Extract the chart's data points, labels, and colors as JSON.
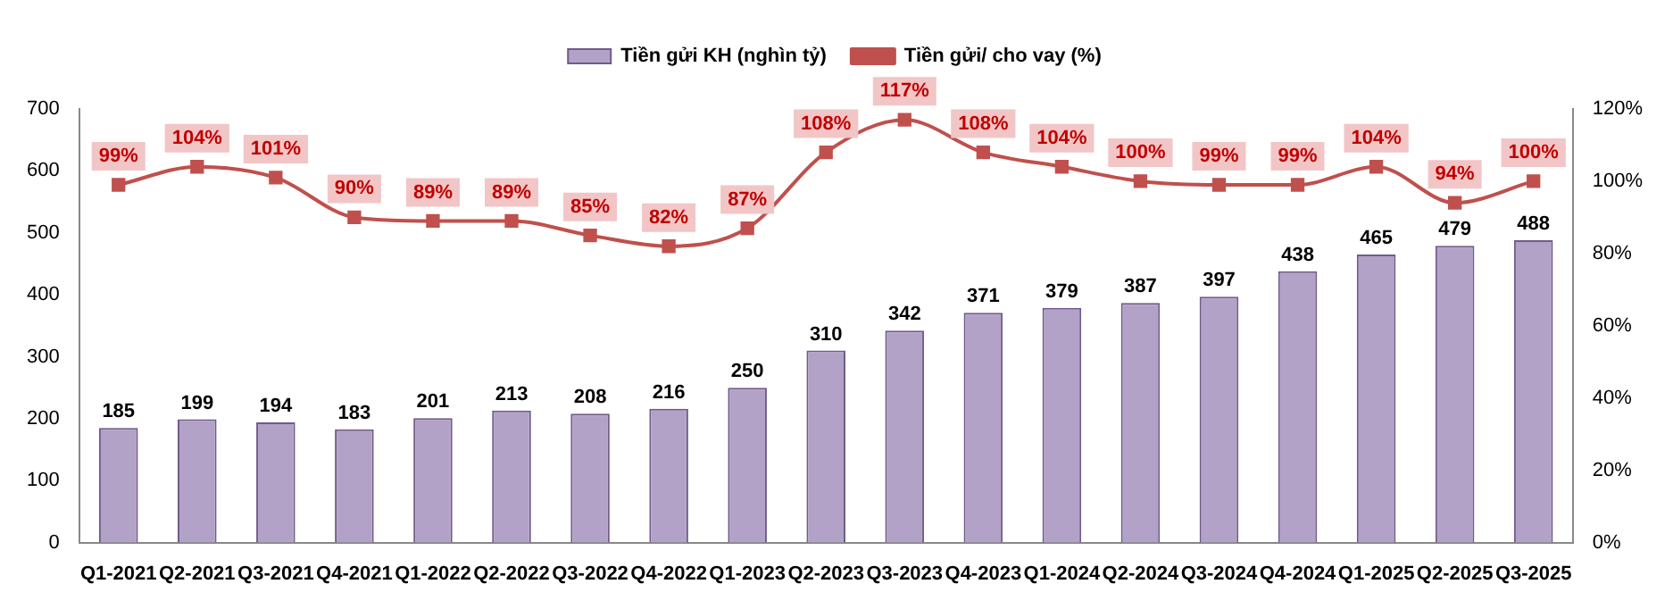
{
  "chart_data": {
    "type": "bar",
    "categories": [
      "Q1-2021",
      "Q2-2021",
      "Q3-2021",
      "Q4-2021",
      "Q1-2022",
      "Q2-2022",
      "Q3-2022",
      "Q4-2022",
      "Q1-2023",
      "Q2-2023",
      "Q3-2023",
      "Q4-2023",
      "Q1-2024",
      "Q2-2024",
      "Q3-2024",
      "Q4-2024",
      "Q1-2025",
      "Q2-2025",
      "Q3-2025"
    ],
    "series": [
      {
        "name": "Tiền gửi KH (nghìn tỷ)",
        "color": "#b3a2c7",
        "values": [
          185,
          199,
          194,
          183,
          201,
          213,
          208,
          216,
          250,
          310,
          342,
          371,
          379,
          387,
          397,
          438,
          465,
          479,
          488
        ],
        "value_labels": [
          "185",
          "199",
          "194",
          "183",
          "201",
          "213",
          "208",
          "216",
          "250",
          "310",
          "342",
          "371",
          "379",
          "387",
          "397",
          "438",
          "465",
          "479",
          "488"
        ]
      },
      {
        "name": "Tiền gửi/ cho vay (%)",
        "type": "line",
        "axis": "y2",
        "color": "#c0504d",
        "values": [
          99,
          104,
          101,
          90,
          89,
          89,
          85,
          82,
          87,
          108,
          117,
          108,
          104,
          100,
          99,
          99,
          104,
          94,
          100
        ],
        "value_labels": [
          "99%",
          "104%",
          "101%",
          "90%",
          "89%",
          "89%",
          "85%",
          "82%",
          "87%",
          "108%",
          "117%",
          "108%",
          "104%",
          "100%",
          "99%",
          "99%",
          "104%",
          "94%",
          "100%"
        ]
      }
    ],
    "ylim": [
      0,
      700
    ],
    "yticks": [
      0,
      100,
      200,
      300,
      400,
      500,
      600,
      700
    ],
    "y2lim": [
      0,
      120
    ],
    "y2ticks": [
      {
        "value": 0,
        "label": "0%"
      },
      {
        "value": 20,
        "label": "20%"
      },
      {
        "value": 40,
        "label": "40%"
      },
      {
        "value": 60,
        "label": "60%"
      },
      {
        "value": 80,
        "label": "80%"
      },
      {
        "value": 100,
        "label": "100%"
      },
      {
        "value": 120,
        "label": "120%"
      }
    ],
    "grid": false,
    "legend": "top",
    "marker": "square",
    "line_style": "solid"
  }
}
